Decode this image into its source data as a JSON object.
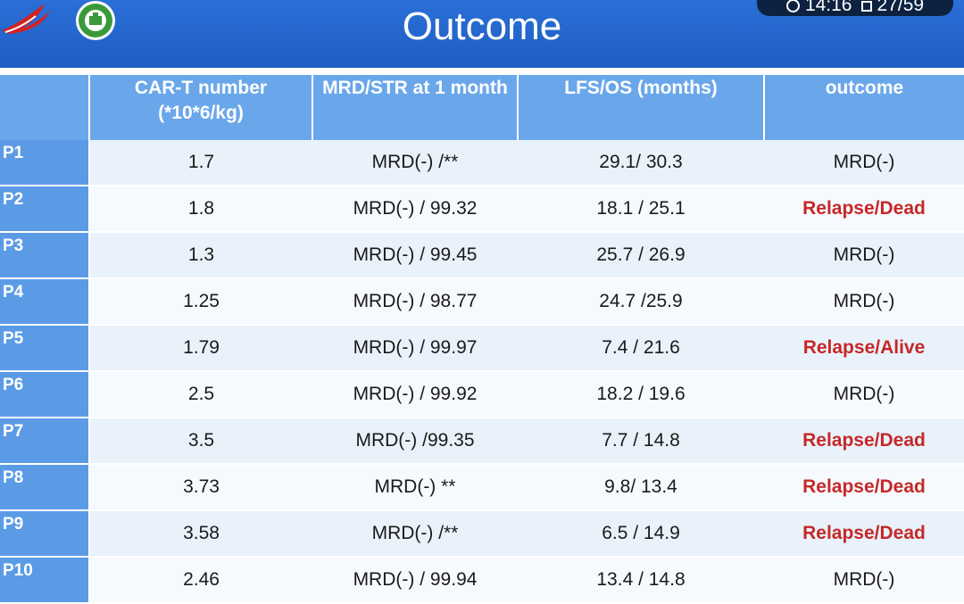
{
  "slide": {
    "title": "Outcome",
    "status_time": "14:16",
    "status_page": "27/59",
    "logo_left_icon": "red-swoosh-logo",
    "logo_right_icon": "green-emblem-logo"
  },
  "table": {
    "headers": [
      "",
      "CAR-T number (*10*6/kg)",
      "MRD/STR at 1 month",
      "LFS/OS (months)",
      "outcome"
    ],
    "rows": [
      {
        "pid": "P1",
        "cart": "1.7",
        "mrd": "MRD(-) /**",
        "lfs": "29.1/ 30.3",
        "outcome": "MRD(-)",
        "outcome_red": false
      },
      {
        "pid": "P2",
        "cart": "1.8",
        "mrd": "MRD(-) / 99.32",
        "lfs": "18.1 / 25.1",
        "outcome": "Relapse/Dead",
        "outcome_red": true
      },
      {
        "pid": "P3",
        "cart": "1.3",
        "mrd": "MRD(-) / 99.45",
        "lfs": "25.7 / 26.9",
        "outcome": "MRD(-)",
        "outcome_red": false
      },
      {
        "pid": "P4",
        "cart": "1.25",
        "mrd": "MRD(-) / 98.77",
        "lfs": "24.7 /25.9",
        "outcome": "MRD(-)",
        "outcome_red": false
      },
      {
        "pid": "P5",
        "cart": "1.79",
        "mrd": "MRD(-) / 99.97",
        "lfs": "7.4 / 21.6",
        "outcome": "Relapse/Alive",
        "outcome_red": true
      },
      {
        "pid": "P6",
        "cart": "2.5",
        "mrd": "MRD(-) / 99.92",
        "lfs": "18.2 / 19.6",
        "outcome": "MRD(-)",
        "outcome_red": false
      },
      {
        "pid": "P7",
        "cart": "3.5",
        "mrd": "MRD(-)  /99.35",
        "lfs": "7.7 / 14.8",
        "outcome": "Relapse/Dead",
        "outcome_red": true
      },
      {
        "pid": "P8",
        "cart": "3.73",
        "mrd": "MRD(-) **",
        "lfs": "9.8/ 13.4",
        "outcome": "Relapse/Dead",
        "outcome_red": true
      },
      {
        "pid": "P9",
        "cart": "3.58",
        "mrd": "MRD(-) /**",
        "lfs": "6.5 / 14.9",
        "outcome": "Relapse/Dead",
        "outcome_red": true
      },
      {
        "pid": "P10",
        "cart": "2.46",
        "mrd": "MRD(-) / 99.94",
        "lfs": "13.4 / 14.8",
        "outcome": "MRD(-)",
        "outcome_red": false
      }
    ]
  },
  "colors": {
    "header_blue": "#1f5ec4",
    "table_header": "#6aa7ea",
    "id_column": "#5b9be6",
    "relapse_red": "#c62828"
  }
}
